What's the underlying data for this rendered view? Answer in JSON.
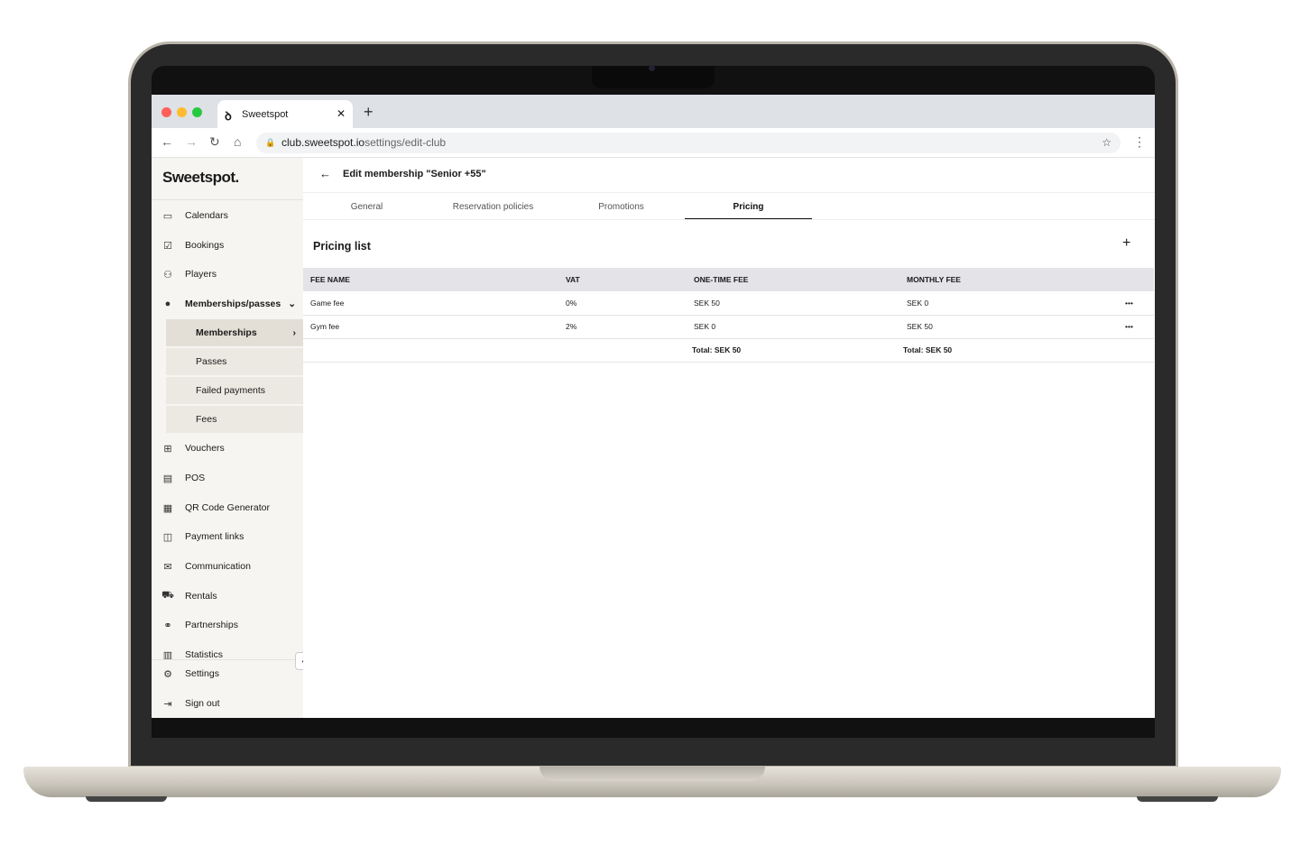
{
  "browser": {
    "tab_title": "Sweetspot",
    "url_domain": "club.sweetspot.io",
    "url_path": "settings/edit-club"
  },
  "sidebar": {
    "logo": "Sweetspot.",
    "items": [
      {
        "label": "Calendars",
        "icon": "calendar-icon"
      },
      {
        "label": "Bookings",
        "icon": "booking-icon"
      },
      {
        "label": "Players",
        "icon": "players-icon"
      },
      {
        "label": "Memberships/passes",
        "icon": "check-badge-icon"
      }
    ],
    "sub_items": [
      {
        "label": "Memberships"
      },
      {
        "label": "Passes"
      },
      {
        "label": "Failed payments"
      },
      {
        "label": "Fees"
      }
    ],
    "items2": [
      {
        "label": "Vouchers",
        "icon": "gift-icon"
      },
      {
        "label": "POS",
        "icon": "register-icon"
      },
      {
        "label": "QR Code Generator",
        "icon": "qr-icon"
      },
      {
        "label": "Payment links",
        "icon": "payment-link-icon"
      },
      {
        "label": "Communication",
        "icon": "mail-icon"
      },
      {
        "label": "Rentals",
        "icon": "cart-icon"
      },
      {
        "label": "Partnerships",
        "icon": "handshake-icon"
      },
      {
        "label": "Statistics",
        "icon": "chart-icon"
      }
    ],
    "settings": "Settings",
    "sign_out": "Sign out"
  },
  "main": {
    "title": "Edit membership \"Senior +55\"",
    "tabs": [
      "General",
      "Reservation policies",
      "Promotions",
      "Pricing"
    ],
    "active_tab": "Pricing",
    "section_title": "Pricing list",
    "table": {
      "headers": [
        "FEE NAME",
        "VAT",
        "ONE-TIME FEE",
        "MONTHLY FEE"
      ],
      "rows": [
        [
          "Game fee",
          "0%",
          "SEK 50",
          "SEK 0"
        ],
        [
          "Gym fee",
          "2%",
          "SEK 0",
          "SEK 50"
        ]
      ],
      "totals": [
        "Total:  SEK 50",
        "Total:  SEK 50"
      ]
    }
  }
}
